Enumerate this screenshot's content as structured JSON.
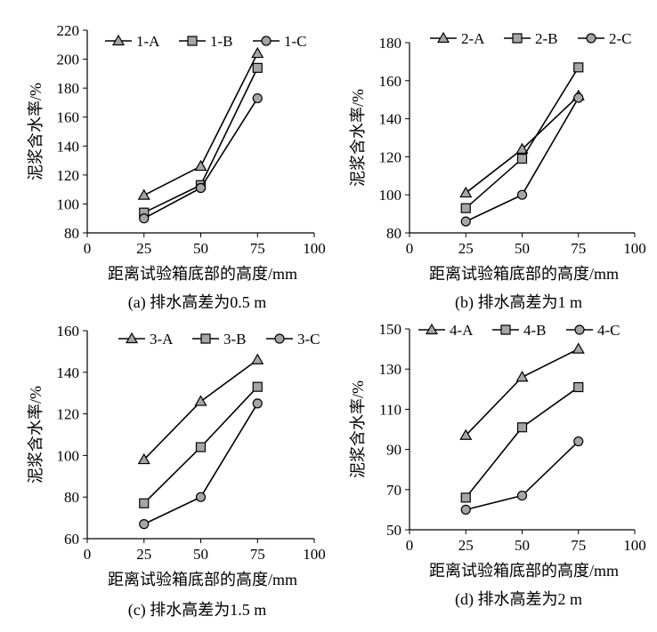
{
  "chart_data": [
    {
      "type": "line",
      "caption": "(a) 排水高差为0.5 m",
      "xlabel": "距离试验箱底部的高度/mm",
      "ylabel": "泥浆含水率/%",
      "xlim": [
        0,
        100
      ],
      "xticks": [
        0,
        25,
        50,
        75,
        100
      ],
      "ylim": [
        80,
        220
      ],
      "yticks": [
        80,
        100,
        120,
        140,
        160,
        180,
        200,
        220
      ],
      "x": [
        25,
        50,
        75
      ],
      "series": [
        {
          "name": "1-A",
          "marker": "triangle",
          "values": [
            106,
            126,
            204
          ]
        },
        {
          "name": "1-B",
          "marker": "square",
          "values": [
            94,
            113,
            194
          ]
        },
        {
          "name": "1-C",
          "marker": "circle",
          "values": [
            90,
            111,
            173
          ]
        }
      ]
    },
    {
      "type": "line",
      "caption": "(b) 排水高差为1 m",
      "xlabel": "距离试验箱底部的高度/mm",
      "ylabel": "泥浆含水率/%",
      "xlim": [
        0,
        100
      ],
      "xticks": [
        0,
        25,
        50,
        75,
        100
      ],
      "ylim": [
        80,
        180
      ],
      "yticks": [
        80,
        100,
        120,
        140,
        160,
        180
      ],
      "x": [
        25,
        50,
        75
      ],
      "series": [
        {
          "name": "2-A",
          "marker": "triangle",
          "values": [
            101,
            124,
            152
          ]
        },
        {
          "name": "2-B",
          "marker": "square",
          "values": [
            93,
            119,
            167
          ]
        },
        {
          "name": "2-C",
          "marker": "circle",
          "values": [
            86,
            100,
            151
          ]
        }
      ]
    },
    {
      "type": "line",
      "caption": "(c) 排水高差为1.5 m",
      "xlabel": "距离试验箱底部的高度/mm",
      "ylabel": "泥浆含水率/%",
      "xlim": [
        0,
        100
      ],
      "xticks": [
        0,
        25,
        50,
        75,
        100
      ],
      "ylim": [
        60,
        160
      ],
      "yticks": [
        60,
        80,
        100,
        120,
        140,
        160
      ],
      "x": [
        25,
        50,
        75
      ],
      "series": [
        {
          "name": "3-A",
          "marker": "triangle",
          "values": [
            98,
            126,
            146
          ]
        },
        {
          "name": "3-B",
          "marker": "square",
          "values": [
            77,
            104,
            133
          ]
        },
        {
          "name": "3-C",
          "marker": "circle",
          "values": [
            67,
            80,
            125
          ]
        }
      ]
    },
    {
      "type": "line",
      "caption": "(d) 排水高差为2 m",
      "xlabel": "距离试验箱底部的高度/mm",
      "ylabel": "泥浆含水率/%",
      "xlim": [
        0,
        100
      ],
      "xticks": [
        0,
        25,
        50,
        75,
        100
      ],
      "ylim": [
        50,
        150
      ],
      "yticks": [
        50,
        70,
        90,
        110,
        130,
        150
      ],
      "x": [
        25,
        50,
        75
      ],
      "series": [
        {
          "name": "4-A",
          "marker": "triangle",
          "values": [
            97,
            126,
            140
          ]
        },
        {
          "name": "4-B",
          "marker": "square",
          "values": [
            66,
            101,
            121
          ]
        },
        {
          "name": "4-C",
          "marker": "circle",
          "values": [
            60,
            67,
            94
          ]
        }
      ]
    }
  ]
}
